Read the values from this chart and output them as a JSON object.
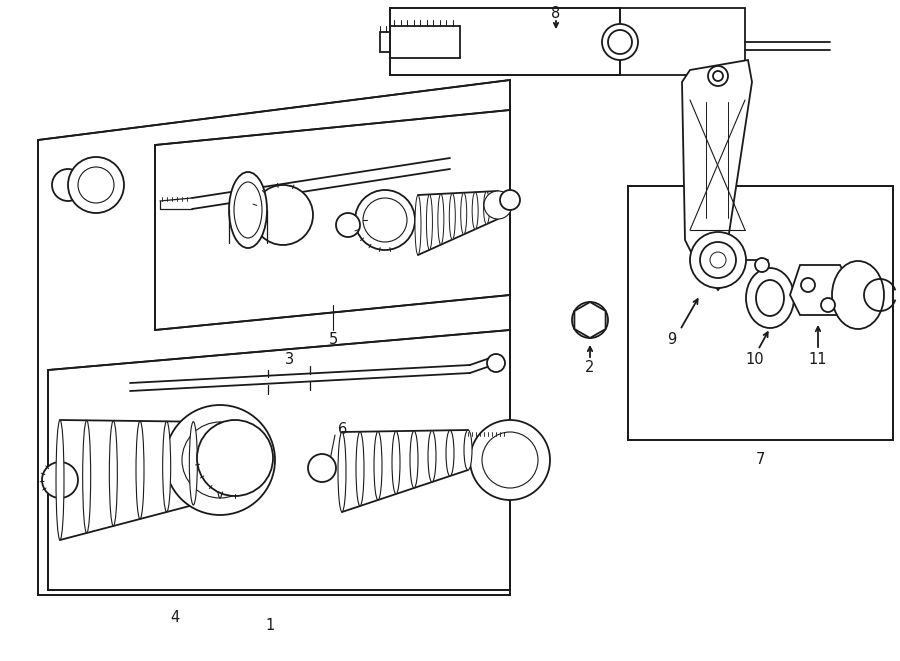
{
  "bg_color": "#ffffff",
  "line_color": "#1a1a1a",
  "lw": 1.3,
  "fig_width": 9.0,
  "fig_height": 6.61,
  "label_fontsize": 10.5
}
